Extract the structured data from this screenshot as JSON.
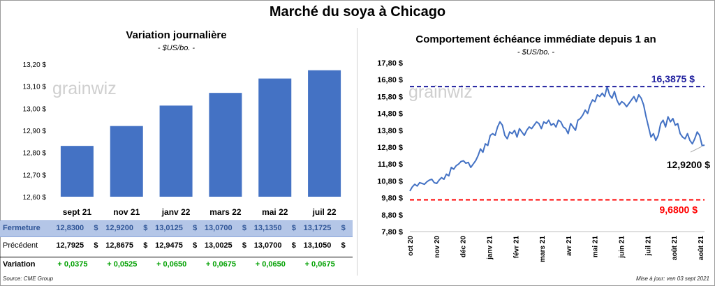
{
  "title": "Marché du soya à Chicago",
  "left": {
    "subtitle": "Variation journalière",
    "unit": "- $US/bo. -",
    "watermark": "grainwiz",
    "table": {
      "rows": [
        {
          "label": "Fermeture",
          "values": [
            "12,8300",
            "12,9200",
            "13,0125",
            "13,0700",
            "13,1350",
            "13,1725"
          ]
        },
        {
          "label": "Précédent",
          "values": [
            "12,7925",
            "12,8675",
            "12,9475",
            "13,0025",
            "13,0700",
            "13,1050"
          ]
        },
        {
          "label": "Variation",
          "values": [
            "+ 0,0375",
            "+ 0,0525",
            "+ 0,0650",
            "+ 0,0675",
            "+ 0,0650",
            "+ 0,0675"
          ]
        }
      ],
      "currency": "$"
    },
    "source": "Source: CME Group"
  },
  "right": {
    "subtitle": "Comportement  échéance immédiate depuis 1 an",
    "unit": "- $US/bo. -",
    "watermark": "grainwiz",
    "high_label": "16,3875 $",
    "low_label": "9,6800 $",
    "last_label": "12,9200 $",
    "updated": "Mise à jour: ven 03 sept 2021"
  },
  "colors": {
    "bar": "#4472c4",
    "line": "#4472c4",
    "high": "#1f1f9e",
    "low": "#ff0000",
    "gain": "#00a000",
    "fermeture_bg": "#b4c6e7",
    "fermeture_text": "#2f5597"
  },
  "chart_data": [
    {
      "type": "bar",
      "categories": [
        "sept 21",
        "nov 21",
        "janv 22",
        "mars 22",
        "mai 22",
        "juil 22"
      ],
      "values": [
        12.83,
        12.92,
        13.0125,
        13.07,
        13.135,
        13.1725
      ],
      "ylim": [
        12.6,
        13.2
      ],
      "yticks": [
        "12,60 $",
        "12,70 $",
        "12,80 $",
        "12,90 $",
        "13,00 $",
        "13,10 $",
        "13,20 $"
      ],
      "grid": false
    },
    {
      "type": "line",
      "x_labels": [
        "oct 20",
        "nov 20",
        "déc 20",
        "janv 21",
        "févr 21",
        "mars 21",
        "avr 21",
        "mai 21",
        "juin 21",
        "juil 21",
        "août 21",
        "août 21"
      ],
      "ylim": [
        7.8,
        17.8
      ],
      "yticks": [
        "7,80 $",
        "8,80 $",
        "9,80 $",
        "10,80 $",
        "11,80 $",
        "12,80 $",
        "13,80 $",
        "14,80 $",
        "15,80 $",
        "16,80 $",
        "17,80 $"
      ],
      "series": [
        {
          "values": [
            10.2,
            10.45,
            10.6,
            10.5,
            10.7,
            10.65,
            10.6,
            10.75,
            10.85,
            10.9,
            10.7,
            10.65,
            10.85,
            11.0,
            10.9,
            11.2,
            11.1,
            11.6,
            11.5,
            11.7,
            11.8,
            11.95,
            12.0,
            11.85,
            11.9,
            11.6,
            11.8,
            12.0,
            12.3,
            12.7,
            12.5,
            13.0,
            12.9,
            13.5,
            13.6,
            13.5,
            14.0,
            14.3,
            14.1,
            13.5,
            13.3,
            13.7,
            13.6,
            13.8,
            13.4,
            13.9,
            13.7,
            13.5,
            13.8,
            14.0,
            13.9,
            14.1,
            14.3,
            14.2,
            13.9,
            14.3,
            14.2,
            14.4,
            14.1,
            14.2,
            14.0,
            14.4,
            14.3,
            14.0,
            13.9,
            13.6,
            14.2,
            14.0,
            13.8,
            14.4,
            14.5,
            14.7,
            15.0,
            14.8,
            15.3,
            15.6,
            15.5,
            15.9,
            15.8,
            16.0,
            15.8,
            16.3875,
            15.9,
            15.7,
            16.1,
            15.6,
            15.3,
            15.5,
            15.4,
            15.2,
            15.4,
            15.6,
            15.8,
            15.5,
            15.9,
            15.7,
            15.3,
            14.6,
            14.0,
            13.4,
            13.6,
            13.2,
            13.5,
            14.2,
            14.4,
            14.0,
            14.6,
            14.3,
            14.5,
            14.1,
            14.2,
            13.6,
            13.4,
            13.3,
            13.6,
            13.2,
            13.0,
            13.3,
            13.7,
            13.5,
            12.9,
            12.92
          ]
        }
      ],
      "hlines": [
        {
          "value": 16.3875,
          "label": "16,3875 $"
        },
        {
          "value": 9.68,
          "label": "9,6800 $"
        }
      ],
      "last": {
        "value": 12.92,
        "label": "12,9200 $"
      }
    }
  ]
}
